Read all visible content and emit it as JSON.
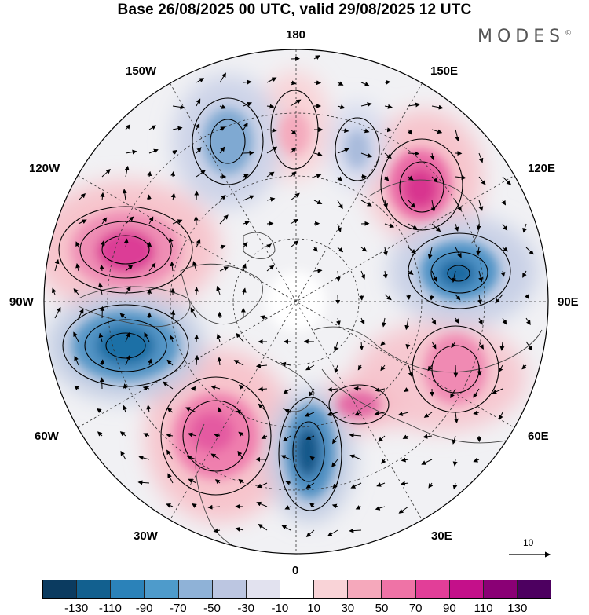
{
  "title": "Base 26/08/2025 00 UTC, valid 29/08/2025 12 UTC",
  "brand": {
    "name": "MODES",
    "mark": "©"
  },
  "longitude_labels": {
    "n180": "180",
    "lon150w": "150W",
    "lon150e": "150E",
    "lon120w": "120W",
    "lon120e": "120E",
    "lon90w": "90W",
    "lon90e": "90E",
    "lon60w": "60W",
    "lon60e": "60E",
    "lon30w": "30W",
    "lon30e": "30E",
    "s0": "0"
  },
  "reference_vector": {
    "label": "10"
  },
  "colorbar": {
    "ticks": [
      "-130",
      "-110",
      "-90",
      "-70",
      "-50",
      "-30",
      "-10",
      "10",
      "30",
      "50",
      "70",
      "90",
      "110",
      "130"
    ],
    "colors": [
      "#0b3b60",
      "#12608f",
      "#2b82b9",
      "#4e9bcb",
      "#8fb2d7",
      "#bcc6e1",
      "#e2e2ef",
      "#ffffff",
      "#f9d3d7",
      "#f5a8bb",
      "#ef73a6",
      "#e23e98",
      "#c4108a",
      "#8a0075",
      "#4d0060"
    ]
  }
}
